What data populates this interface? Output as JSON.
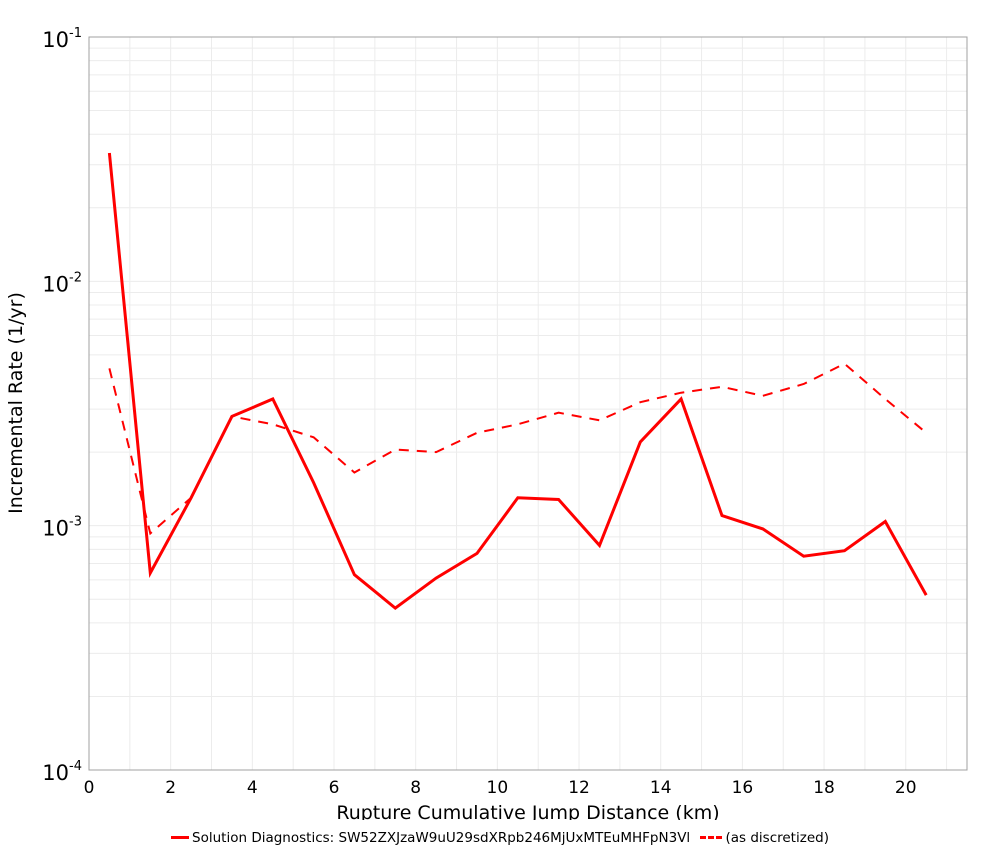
{
  "chart_data": {
    "type": "line",
    "title": "",
    "xlabel": "Rupture Cumulative Jump Distance (km)",
    "ylabel": "Incremental Rate (1/yr)",
    "xlim": [
      0,
      21.5
    ],
    "ylim": [
      0.0001,
      0.1
    ],
    "yscale": "log",
    "grid": true,
    "legend_position": "bottom",
    "x_ticks": [
      "0",
      "2",
      "4",
      "6",
      "8",
      "10",
      "12",
      "14",
      "16",
      "18",
      "20"
    ],
    "y_ticks": [
      {
        "base": "10",
        "exp": "-1"
      },
      {
        "base": "10",
        "exp": "-2"
      },
      {
        "base": "10",
        "exp": "-3"
      },
      {
        "base": "10",
        "exp": "-4"
      }
    ],
    "x": [
      0.5,
      1.5,
      2.5,
      3.5,
      4.5,
      5.5,
      6.5,
      7.5,
      8.5,
      9.5,
      10.5,
      11.5,
      12.5,
      13.5,
      14.5,
      15.5,
      16.5,
      17.5,
      18.5,
      19.5,
      20.5
    ],
    "series": [
      {
        "name": "Solution Diagnostics: SW52ZXJzaW9uU29sdXRpb246MjUxMTEuMHFpN3Vl",
        "style": "solid",
        "color": "#ff0000",
        "values": [
          0.0335,
          0.00064,
          0.0013,
          0.0028,
          0.0033,
          0.0015,
          0.00063,
          0.00046,
          0.00061,
          0.00077,
          0.0013,
          0.00128,
          0.00083,
          0.0022,
          0.0033,
          0.0011,
          0.00097,
          0.00075,
          0.00079,
          0.00104,
          0.00052
        ]
      },
      {
        "name": "(as discretized)",
        "style": "dashed",
        "color": "#ff0000",
        "values": [
          0.0044,
          0.00093,
          0.0013,
          0.0028,
          0.0026,
          0.0023,
          0.00165,
          0.00205,
          0.002,
          0.0024,
          0.0026,
          0.0029,
          0.0027,
          0.0032,
          0.0035,
          0.0037,
          0.0034,
          0.0038,
          0.0046,
          0.0033,
          0.0024
        ]
      }
    ]
  },
  "legend": {
    "items": [
      {
        "label": "Solution Diagnostics: SW52ZXJzaW9uU29sdXRpb246MjUxMTEuMHFpN3Vl"
      },
      {
        "label": "(as discretized)"
      }
    ]
  }
}
